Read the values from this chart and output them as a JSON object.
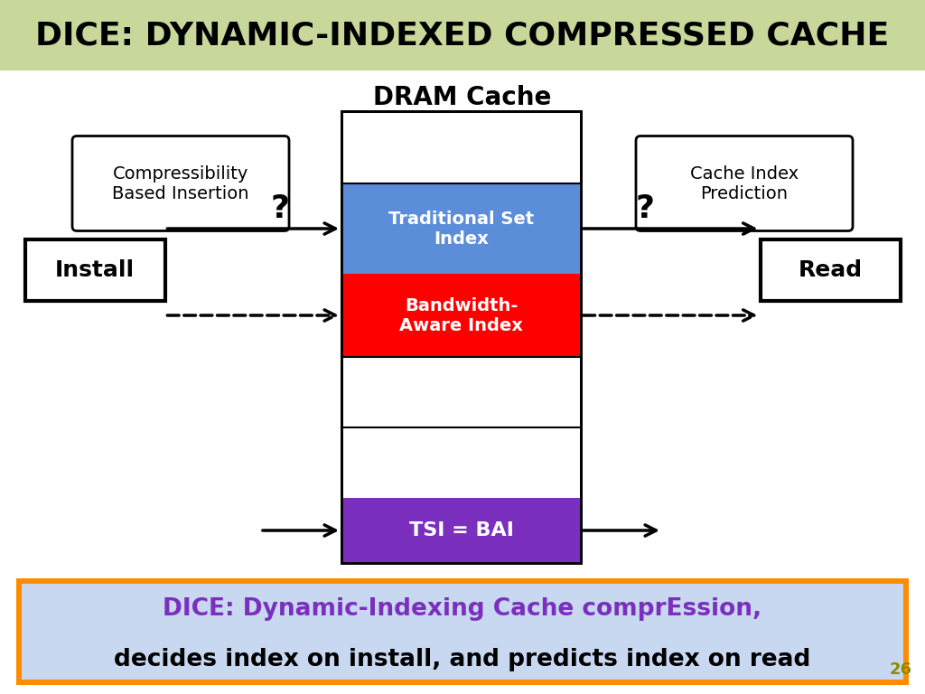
{
  "title": "DICE: DYNAMIC-INDEXED COMPRESSED CACHE",
  "title_bg": "#c8d89a",
  "title_color": "#000000",
  "title_fontsize": 26,
  "main_bg": "#ffffff",
  "dram_label": "DRAM Cache",
  "tsi_label": "TSI = BAI",
  "tsi_color": "#7B2FBE",
  "traditional_label": "Traditional Set\nIndex",
  "traditional_color": "#5B8DD9",
  "bandwidth_label": "Bandwidth-\nAware Index",
  "bandwidth_color": "#FF0000",
  "install_label": "Install",
  "read_label": "Read",
  "compress_label": "Compressibility\nBased Insertion",
  "cache_index_label": "Cache Index\nPrediction",
  "bottom_text1": "DICE: Dynamic-Indexing Cache comprEssion,",
  "bottom_text2": "decides index on install, and predicts index on read",
  "bottom_text1_color": "#7B2FBE",
  "bottom_text2_color": "#000000",
  "bottom_bg": "#c8d8f0",
  "bottom_border": "#FF8C00",
  "page_num": "26",
  "page_num_color": "#8B8B00"
}
